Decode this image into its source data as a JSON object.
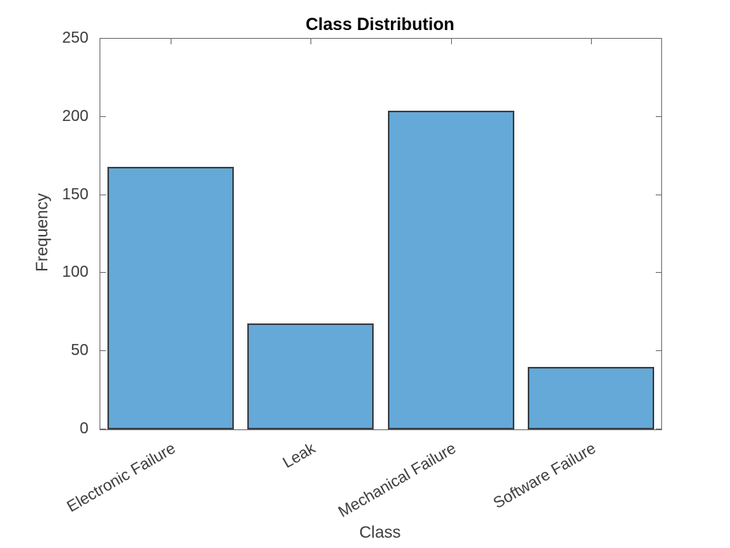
{
  "chart_data": {
    "type": "bar",
    "title": "Class Distribution",
    "xlabel": "Class",
    "ylabel": "Frequency",
    "categories": [
      "Electronic Failure",
      "Leak",
      "Mechanical Failure",
      "Software Failure"
    ],
    "values": [
      168,
      68,
      204,
      40
    ],
    "ylim": [
      0,
      250
    ],
    "yticks": [
      0,
      50,
      100,
      150,
      200,
      250
    ],
    "xtick_rotation_deg": -30,
    "bar_width_fraction": 0.9,
    "grid": false,
    "colors": {
      "bar_fill": "#64a9d8",
      "bar_edge": "#3a4149",
      "axis_line": "#6e6e6e",
      "tick_text": "#3c3c3c",
      "title_text": "#000000"
    }
  }
}
